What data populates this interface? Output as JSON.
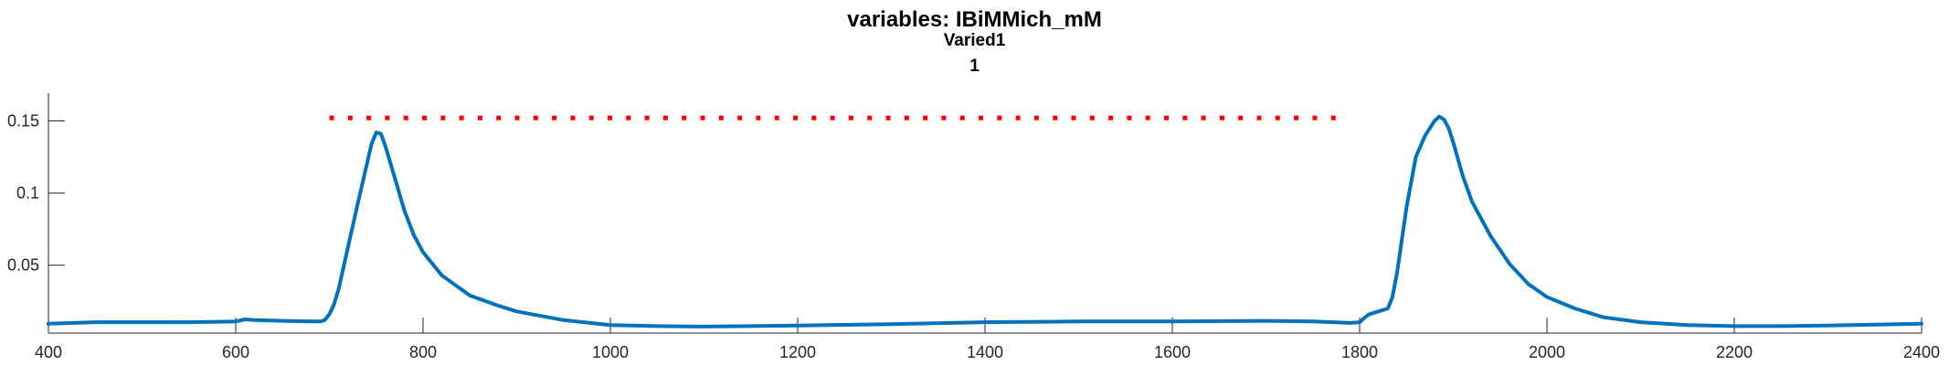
{
  "chart_data": {
    "type": "line",
    "title": "variables: IBiMMich_mM",
    "subtitle": "Varied1",
    "subtitle2": "1",
    "xlim": [
      400,
      2400
    ],
    "ylim": [
      0.003,
      0.168
    ],
    "xticks": [
      400,
      600,
      800,
      1000,
      1200,
      1400,
      1600,
      1800,
      2000,
      2200,
      2400
    ],
    "xtick_labels": [
      "400",
      "600",
      "800",
      "1000",
      "1200",
      "1400",
      "1600",
      "1800",
      "2000",
      "2200",
      "2400"
    ],
    "yticks": [
      0.05,
      0.1,
      0.15
    ],
    "ytick_labels": [
      "0.05",
      "0.1",
      "0.15"
    ],
    "grid": false,
    "series": [
      {
        "color": "#0072BD",
        "style": "solid",
        "x": [
          400,
          450,
          500,
          550,
          600,
          610,
          620,
          650,
          680,
          690,
          695,
          700,
          705,
          710,
          720,
          730,
          740,
          745,
          750,
          755,
          760,
          770,
          780,
          790,
          800,
          820,
          850,
          880,
          900,
          950,
          1000,
          1050,
          1100,
          1150,
          1200,
          1300,
          1400,
          1500,
          1600,
          1700,
          1750,
          1790,
          1800,
          1805,
          1810,
          1820,
          1830,
          1835,
          1840,
          1850,
          1860,
          1870,
          1880,
          1885,
          1890,
          1895,
          1900,
          1910,
          1920,
          1940,
          1960,
          1980,
          2000,
          2030,
          2060,
          2100,
          2150,
          2200,
          2250,
          2300,
          2350,
          2400
        ],
        "y": [
          0.0095,
          0.0105,
          0.0105,
          0.0105,
          0.011,
          0.0125,
          0.012,
          0.0115,
          0.011,
          0.011,
          0.012,
          0.016,
          0.023,
          0.034,
          0.063,
          0.092,
          0.12,
          0.134,
          0.142,
          0.141,
          0.132,
          0.11,
          0.088,
          0.071,
          0.059,
          0.043,
          0.029,
          0.022,
          0.018,
          0.012,
          0.0085,
          0.0078,
          0.0075,
          0.0078,
          0.0082,
          0.0092,
          0.0105,
          0.011,
          0.011,
          0.0115,
          0.011,
          0.01,
          0.0105,
          0.0135,
          0.016,
          0.018,
          0.02,
          0.028,
          0.045,
          0.09,
          0.125,
          0.14,
          0.15,
          0.153,
          0.151,
          0.145,
          0.135,
          0.112,
          0.094,
          0.07,
          0.051,
          0.037,
          0.028,
          0.02,
          0.014,
          0.0105,
          0.0085,
          0.0078,
          0.0078,
          0.0082,
          0.0088,
          0.0095
        ]
      },
      {
        "color": "#FF0000",
        "style": "dotted",
        "x": [
          700,
          1780
        ],
        "y": [
          0.152,
          0.152
        ]
      }
    ]
  }
}
